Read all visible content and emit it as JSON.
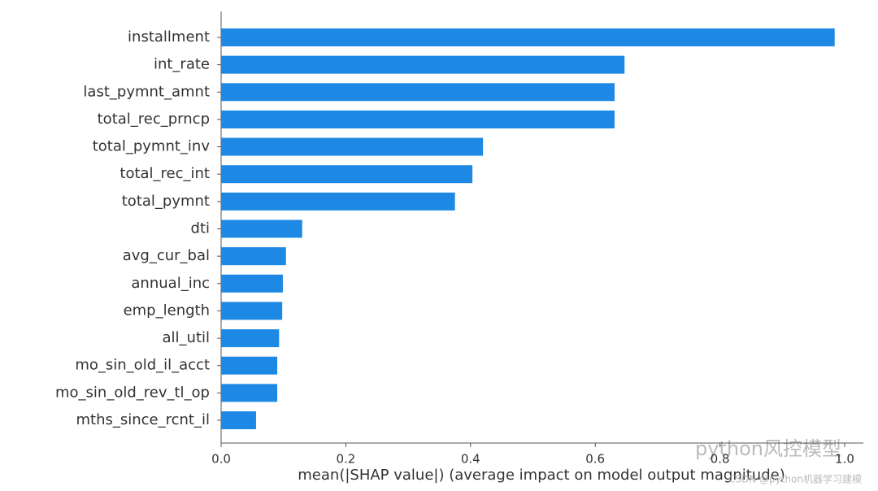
{
  "chart_data": {
    "type": "barh",
    "xlabel": "mean(|SHAP value|) (average impact on model output magnitude)",
    "categories": [
      "installment",
      "int_rate",
      "last_pymnt_amnt",
      "total_rec_prncp",
      "total_pymnt_inv",
      "total_rec_int",
      "total_pymnt",
      "dti",
      "avg_cur_bal",
      "annual_inc",
      "emp_length",
      "all_util",
      "mo_sin_old_il_acct",
      "mo_sin_old_rev_tl_op",
      "mths_since_rcnt_il"
    ],
    "values": [
      0.984,
      0.647,
      0.631,
      0.631,
      0.42,
      0.403,
      0.375,
      0.13,
      0.104,
      0.099,
      0.098,
      0.093,
      0.09,
      0.09,
      0.056
    ],
    "color": "#1e88e5",
    "xlim": [
      0,
      1.03
    ],
    "xticks": [
      {
        "value": 0,
        "label": "0.0"
      },
      0.2,
      0.4,
      0.6,
      0.8,
      {
        "value": 1,
        "label": "1.0"
      }
    ],
    "annotations": [
      "python风控模型",
      "CSDN @python机器学习建模"
    ]
  }
}
